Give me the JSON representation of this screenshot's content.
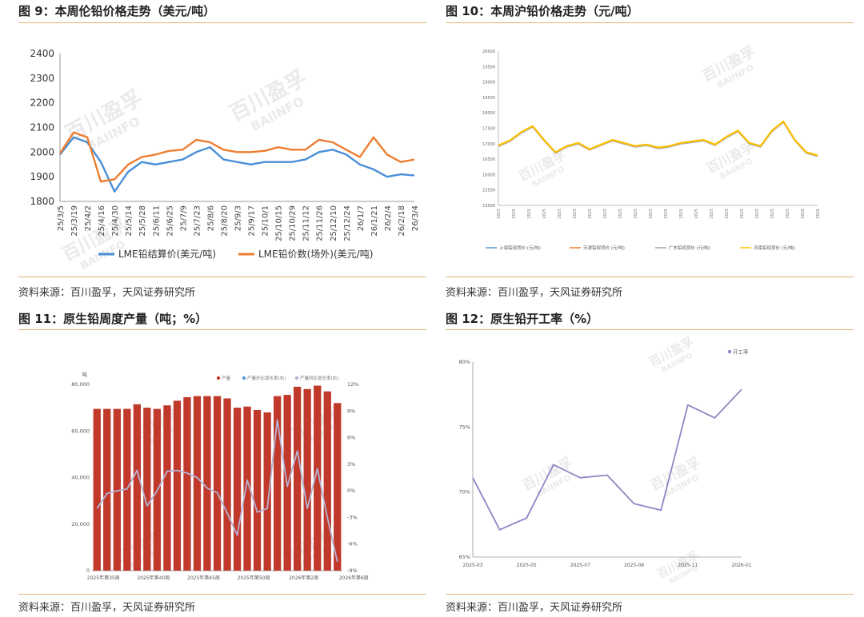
{
  "panels": [
    {
      "title": "图 9：本周伦铅价格走势（美元/吨）",
      "source": "资料来源：百川盈孚，天风证券研究所"
    },
    {
      "title": "图 10：本周沪铅价格走势（元/吨）",
      "source": "资料来源：百川盈孚，天风证券研究所"
    },
    {
      "title": "图 11：原生铅周度产量（吨；%）",
      "source": "资料来源：百川盈孚，天风证券研究所"
    },
    {
      "title": "图 12：原生铅开工率（%）",
      "source": "资料来源：百川盈孚，天风证券研究所"
    }
  ],
  "watermark": {
    "cn": "百川盈孚",
    "en": "BAIINFO"
  },
  "chart_data": [
    {
      "type": "line",
      "ylim": [
        1800,
        2400
      ],
      "yticks": [
        "1800",
        "1900",
        "2000",
        "2100",
        "2200",
        "2300",
        "2400"
      ],
      "xticks": [
        "25/3/5",
        "25/3/19",
        "25/4/2",
        "25/4/16",
        "25/4/30",
        "25/5/14",
        "25/5/28",
        "25/6/11",
        "25/6/25",
        "25/7/9",
        "25/7/23",
        "25/8/6",
        "25/8/20",
        "25/9/3",
        "25/9/17",
        "25/10/1",
        "25/10/15",
        "25/10/29",
        "25/11/12",
        "25/11/26",
        "25/12/10",
        "25/12/24",
        "26/1/7",
        "26/1/21",
        "26/2/4",
        "26/2/18",
        "26/3/4"
      ],
      "series": [
        {
          "name": "LME铅结算价(美元/吨)",
          "color": "#4a8fd6",
          "values": [
            1990,
            2060,
            2040,
            1960,
            1840,
            1920,
            1960,
            1950,
            1960,
            1970,
            2000,
            2020,
            1970,
            1960,
            1950,
            1960,
            1960,
            1960,
            1970,
            2000,
            2010,
            1990,
            1950,
            1930,
            1900,
            1910,
            1905
          ]
        },
        {
          "name": "LME铅价数(场外)(美元/吨)",
          "color": "#ed7d31",
          "values": [
            1995,
            2080,
            2060,
            1880,
            1890,
            1950,
            1980,
            1990,
            2005,
            2010,
            2050,
            2040,
            2010,
            2000,
            2000,
            2005,
            2020,
            2010,
            2010,
            2050,
            2040,
            2010,
            1980,
            2060,
            1990,
            1960,
            1970
          ]
        }
      ]
    },
    {
      "type": "line",
      "ylim": [
        15000,
        20000
      ],
      "yticks": [
        "15000",
        "15500",
        "16000",
        "16500",
        "17000",
        "17500",
        "18000",
        "18500",
        "19000",
        "19500",
        "20000"
      ],
      "xticks": [
        "2025",
        "2025",
        "2025",
        "2025",
        "2025",
        "2025",
        "2025",
        "2025",
        "2025",
        "2025",
        "2025",
        "2025",
        "2025",
        "2025",
        "2025",
        "2025",
        "2025",
        "2025",
        "2025",
        "2025",
        "2026",
        "2026"
      ],
      "legend": [
        "上海铅现货价 (元/吨)",
        "天津铅现货价 (元/吨)",
        "广东铅现货价 (元/吨)",
        "河南铅现货价 (元/吨)"
      ],
      "legend_colors": [
        "#5b9bd5",
        "#ed7d31",
        "#a5a5a5",
        "#ffc000"
      ],
      "series_values": [
        16920,
        17080,
        17350,
        17550,
        17100,
        16700,
        16900,
        17000,
        16800,
        16950,
        17100,
        17000,
        16900,
        16950,
        16850,
        16900,
        17000,
        17050,
        17100,
        16950,
        17200,
        17400,
        17000,
        16900,
        17400,
        17700,
        17100,
        16700,
        16600
      ]
    },
    {
      "type": "bar+line",
      "yunit": "吨",
      "yticks": [
        "0",
        "20,000",
        "40,000",
        "60,000",
        "80,000"
      ],
      "ylim": [
        0,
        80000
      ],
      "y2ticks": [
        "-9%",
        "-6%",
        "-3%",
        "0%",
        "3%",
        "6%",
        "9%",
        "12%"
      ],
      "y2lim": [
        -9,
        12
      ],
      "xticks": [
        "2025年第35周",
        "2025年第40周",
        "2025年第45周",
        "2025年第50周",
        "2026年第2周",
        "2026年第6周"
      ],
      "legend": [
        "产量",
        "产量环比增长率(右)",
        "产量同比增长率(右)"
      ],
      "legend_colors": [
        "#c0392b",
        "#5b9bd5",
        "#b4b4d6"
      ],
      "bars": [
        69500,
        69500,
        69500,
        69500,
        71500,
        70000,
        69500,
        71000,
        73000,
        74500,
        75000,
        75000,
        75000,
        74000,
        70000,
        70500,
        69000,
        68000,
        75000,
        75500,
        79000,
        78000,
        79500,
        77000,
        72000
      ],
      "line": [
        -2,
        -0.3,
        0,
        0.2,
        2.3,
        -1.7,
        0,
        2.2,
        2.3,
        2,
        1.5,
        0.3,
        -0.2,
        -2.5,
        -5,
        1.2,
        -2.4,
        -2,
        8,
        0.5,
        4.5,
        -2,
        2.5,
        -3,
        -8
      ]
    },
    {
      "type": "line",
      "legend": [
        "开工率"
      ],
      "color": "#8b87c4",
      "yticks": [
        "65%",
        "70%",
        "75%",
        "80%"
      ],
      "ylim": [
        65,
        80
      ],
      "xticks": [
        "2025-03",
        "2025-05",
        "2025-07",
        "2025-09",
        "2025-11",
        "2026-01"
      ],
      "values": [
        71.1,
        67.1,
        68.0,
        72.1,
        71.1,
        71.3,
        69.1,
        68.6,
        76.7,
        75.7,
        77.9
      ]
    }
  ]
}
